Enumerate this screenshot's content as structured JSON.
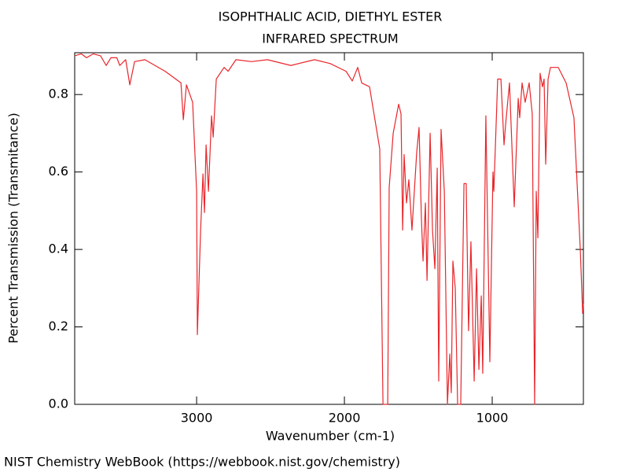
{
  "chart_data": {
    "type": "line",
    "title": "ISOPHTHALIC ACID, DIETHYL ESTER",
    "subtitle": "INFRARED SPECTRUM",
    "x_label": "Wavenumber (cm-1)",
    "y_label": "Percent Transmission (Transmitance)",
    "source": "NIST Chemistry WebBook (https://webbook.nist.gov/chemistry)",
    "color": "#e8262b",
    "xlim": [
      3825,
      383
    ],
    "ylim": [
      0,
      0.908
    ],
    "xticks": [
      3000,
      2000,
      1000
    ],
    "yticks": [
      {
        "value": 0,
        "label": "0.0"
      },
      0.2,
      0.4,
      0.6,
      0.8
    ],
    "x": [
      3825,
      3780,
      3745,
      3700,
      3650,
      3612,
      3580,
      3540,
      3520,
      3480,
      3452,
      3420,
      3350,
      3213,
      3106,
      3090,
      3069,
      3027,
      3000,
      2995,
      2973,
      2957,
      2947,
      2936,
      2920,
      2899,
      2888,
      2867,
      2814,
      2787,
      2734,
      2628,
      2521,
      2362,
      2202,
      2096,
      1989,
      1947,
      1910,
      1883,
      1830,
      1761,
      1739,
      1729,
      1707,
      1697,
      1670,
      1633,
      1617,
      1606,
      1596,
      1580,
      1564,
      1543,
      1511,
      1495,
      1479,
      1468,
      1452,
      1441,
      1420,
      1404,
      1388,
      1372,
      1362,
      1346,
      1324,
      1303,
      1287,
      1277,
      1266,
      1250,
      1234,
      1213,
      1191,
      1176,
      1165,
      1160,
      1144,
      1122,
      1106,
      1090,
      1074,
      1064,
      1043,
      1016,
      995,
      989,
      963,
      941,
      920,
      910,
      883,
      851,
      824,
      814,
      798,
      777,
      750,
      729,
      713,
      702,
      691,
      676,
      660,
      649,
      638,
      622,
      606,
      553,
      500,
      447,
      404,
      388,
      383
    ],
    "values": [
      0.9,
      0.905,
      0.895,
      0.905,
      0.9,
      0.875,
      0.895,
      0.895,
      0.875,
      0.89,
      0.825,
      0.885,
      0.89,
      0.86,
      0.83,
      0.735,
      0.825,
      0.78,
      0.55,
      0.18,
      0.45,
      0.595,
      0.495,
      0.67,
      0.55,
      0.745,
      0.69,
      0.84,
      0.87,
      0.86,
      0.89,
      0.885,
      0.89,
      0.875,
      0.89,
      0.88,
      0.86,
      0.835,
      0.87,
      0.83,
      0.82,
      0.66,
      0,
      0,
      0,
      0.56,
      0.7,
      0.775,
      0.75,
      0.45,
      0.645,
      0.52,
      0.58,
      0.45,
      0.65,
      0.715,
      0.48,
      0.37,
      0.52,
      0.32,
      0.7,
      0.45,
      0.35,
      0.61,
      0.06,
      0.71,
      0.55,
      0,
      0.13,
      0.03,
      0.37,
      0.3,
      0,
      0,
      0.57,
      0.57,
      0.3,
      0.19,
      0.42,
      0.06,
      0.35,
      0.09,
      0.28,
      0.08,
      0.745,
      0.11,
      0.6,
      0.55,
      0.84,
      0.84,
      0.67,
      0.72,
      0.83,
      0.51,
      0.79,
      0.74,
      0.83,
      0.78,
      0.83,
      0.75,
      0,
      0.55,
      0.43,
      0.855,
      0.82,
      0.84,
      0.62,
      0.84,
      0.87,
      0.87,
      0.83,
      0.74,
      0.4,
      0.235,
      0.26
    ]
  }
}
